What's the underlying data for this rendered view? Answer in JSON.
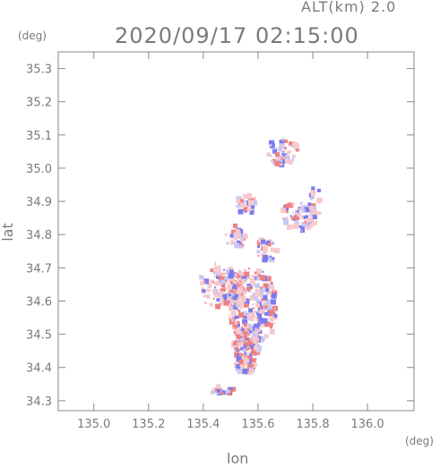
{
  "header": {
    "altitude_label": "ALT(km)  2.0",
    "timestamp": "2020/09/17 02:15:00"
  },
  "chart_data": {
    "type": "scatter",
    "title": "2020/09/17 02:15:00",
    "subtitle": "ALT(km)  2.0",
    "xlabel": "lon",
    "ylabel": "lat",
    "x_unit": "(deg)",
    "y_unit": "(deg)",
    "xlim": [
      134.87,
      136.17
    ],
    "ylim": [
      34.27,
      35.35
    ],
    "x_ticks": [
      135.0,
      135.2,
      135.4,
      135.6,
      135.8,
      136.0
    ],
    "x_tick_labels": [
      "135.0",
      "135.2",
      "135.4",
      "135.6",
      "135.8",
      "136.0"
    ],
    "y_ticks": [
      34.3,
      34.4,
      34.5,
      34.6,
      34.7,
      34.8,
      34.9,
      35.0,
      35.1,
      35.2,
      35.3
    ],
    "y_tick_labels": [
      "34.3",
      "34.4",
      "34.5",
      "34.6",
      "34.7",
      "34.8",
      "34.9",
      "35.0",
      "35.1",
      "35.2",
      "35.3"
    ],
    "grid": false,
    "colors": {
      "positive": "#f08080",
      "negative": "#7b7bf0",
      "pale_positive": "#f6c9cc",
      "pale_negative": "#c8c8f4",
      "axis": "#8a8a8a"
    },
    "clusters": [
      {
        "lon": 135.58,
        "lat": 34.58,
        "r_lon": 0.09,
        "r_lat": 0.12,
        "n": 260
      },
      {
        "lon": 135.5,
        "lat": 34.64,
        "r_lon": 0.06,
        "r_lat": 0.06,
        "n": 120
      },
      {
        "lon": 135.56,
        "lat": 34.47,
        "r_lon": 0.05,
        "r_lat": 0.06,
        "n": 110
      },
      {
        "lon": 135.56,
        "lat": 34.41,
        "r_lon": 0.04,
        "r_lat": 0.03,
        "n": 40
      },
      {
        "lon": 135.47,
        "lat": 34.33,
        "r_lon": 0.05,
        "r_lat": 0.015,
        "n": 25
      },
      {
        "lon": 135.69,
        "lat": 35.05,
        "r_lon": 0.06,
        "r_lat": 0.04,
        "n": 70
      },
      {
        "lon": 135.75,
        "lat": 34.86,
        "r_lon": 0.06,
        "r_lat": 0.05,
        "n": 70
      },
      {
        "lon": 135.56,
        "lat": 34.89,
        "r_lon": 0.04,
        "r_lat": 0.03,
        "n": 35
      },
      {
        "lon": 135.52,
        "lat": 34.79,
        "r_lon": 0.04,
        "r_lat": 0.04,
        "n": 30
      },
      {
        "lon": 135.81,
        "lat": 34.89,
        "r_lon": 0.02,
        "r_lat": 0.06,
        "n": 25
      },
      {
        "lon": 135.63,
        "lat": 34.75,
        "r_lon": 0.04,
        "r_lat": 0.04,
        "n": 35
      },
      {
        "lon": 135.44,
        "lat": 34.65,
        "r_lon": 0.05,
        "r_lat": 0.08,
        "n": 40
      }
    ]
  }
}
